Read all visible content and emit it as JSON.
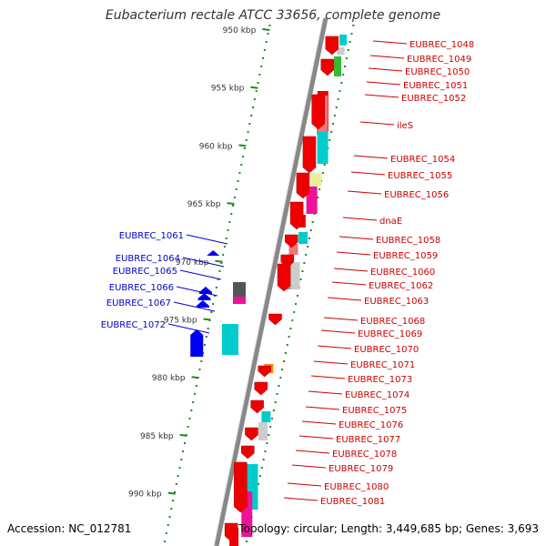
{
  "title": "Eubacterium rectale ATCC 33656, complete genome",
  "accession_label": "Accession: NC_012781",
  "topology_label": "Topology: circular; Length: 3,449,685 bp; Genes: 3,693",
  "colors": {
    "forward_label": "#cc0000",
    "reverse_label": "#0000cc",
    "backbone": "#888888",
    "ticks_dots": "#228822"
  },
  "chart_data": {
    "type": "genome-map",
    "ticks": [
      {
        "kbp": 950,
        "label": "950 kbp"
      },
      {
        "kbp": 955,
        "label": "955 kbp"
      },
      {
        "kbp": 960,
        "label": "960 kbp"
      },
      {
        "kbp": 965,
        "label": "965 kbp"
      },
      {
        "kbp": 970,
        "label": "970 kbp"
      },
      {
        "kbp": 975,
        "label": "975 kbp"
      },
      {
        "kbp": 980,
        "label": "980 kbp"
      },
      {
        "kbp": 985,
        "label": "985 kbp"
      },
      {
        "kbp": 990,
        "label": "990 kbp"
      }
    ],
    "forward_labels": [
      "EUBREC_1048",
      "EUBREC_1049",
      "EUBREC_1050",
      "EUBREC_1051",
      "EUBREC_1052",
      "ileS",
      "EUBREC_1054",
      "EUBREC_1055",
      "EUBREC_1056",
      "dnaE",
      "EUBREC_1058",
      "EUBREC_1059",
      "EUBREC_1060",
      "EUBREC_1062",
      "EUBREC_1063",
      "EUBREC_1068",
      "EUBREC_1069",
      "EUBREC_1070",
      "EUBREC_1071",
      "EUBREC_1073",
      "EUBREC_1074",
      "EUBREC_1075",
      "EUBREC_1076",
      "EUBREC_1077",
      "EUBREC_1078",
      "EUBREC_1079",
      "EUBREC_1080",
      "EUBREC_1081"
    ],
    "reverse_labels": [
      "EUBREC_1061",
      "EUBREC_1064",
      "EUBREC_1065",
      "EUBREC_1066",
      "EUBREC_1067",
      "EUBREC_1072"
    ]
  }
}
